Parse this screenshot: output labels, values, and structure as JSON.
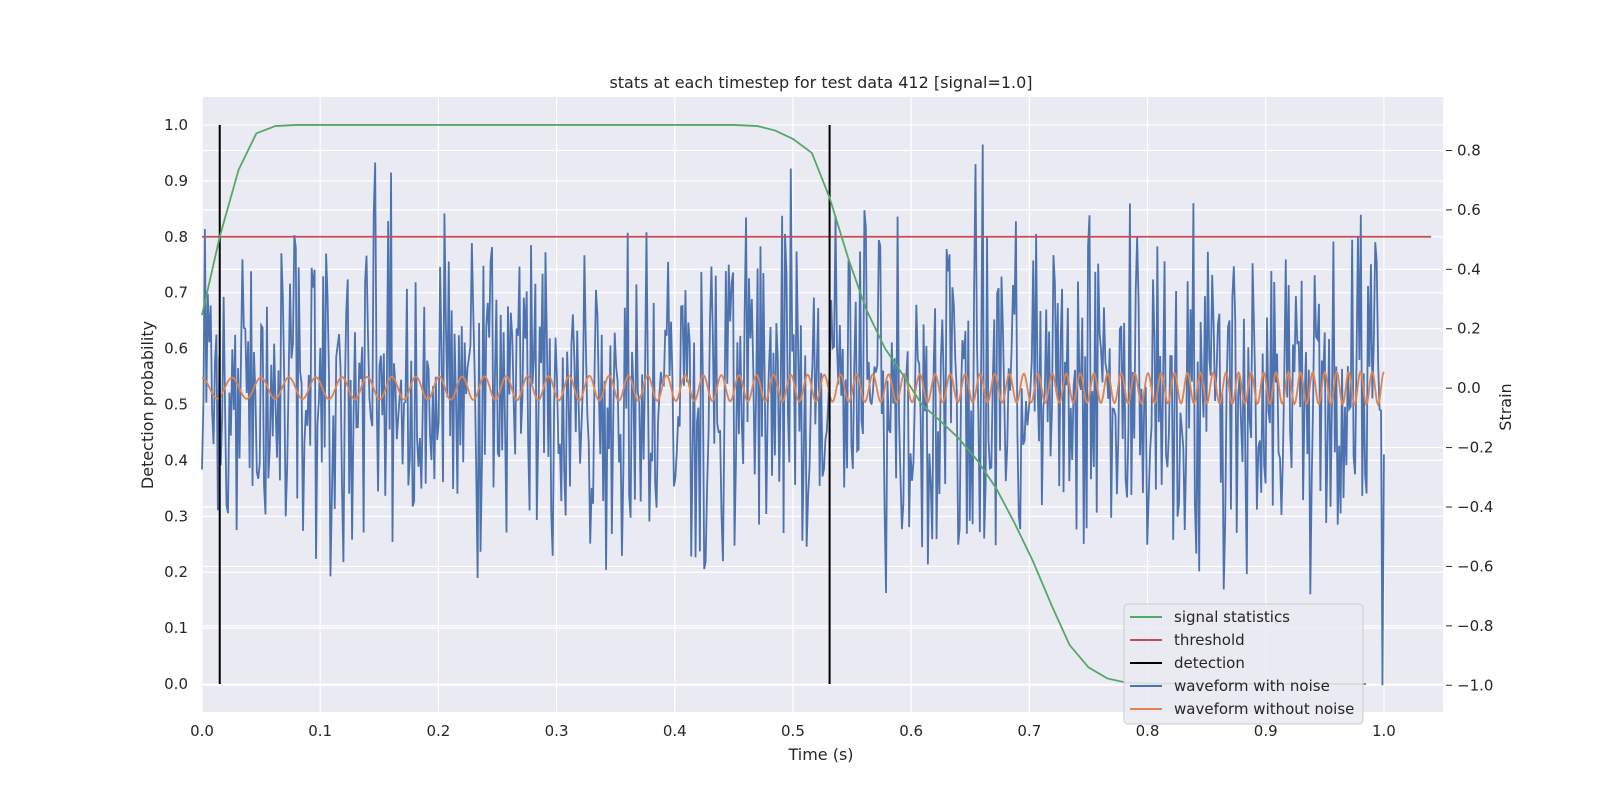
{
  "chart_data": {
    "type": "line",
    "title": "stats at each timestep for test data 412 [signal=1.0]",
    "xlabel": "Time (s)",
    "ylabel": "Detection probability",
    "y2label": "Strain",
    "xlim": [
      0.0,
      1.05
    ],
    "ylim": [
      -0.05,
      1.05
    ],
    "y2lim": [
      -1.09,
      0.98
    ],
    "x_ticks": [
      "0.0",
      "0.1",
      "0.2",
      "0.3",
      "0.4",
      "0.5",
      "0.6",
      "0.7",
      "0.8",
      "0.9",
      "1.0"
    ],
    "y_ticks": [
      "0.0",
      "0.1",
      "0.2",
      "0.3",
      "0.4",
      "0.5",
      "0.6",
      "0.7",
      "0.8",
      "0.9",
      "1.0"
    ],
    "y2_ticks": [
      "−1.0",
      "−0.8",
      "−0.6",
      "−0.4",
      "−0.2",
      "0.0",
      "0.2",
      "0.4",
      "0.6",
      "0.8"
    ],
    "grid": true,
    "legend_position": "lower-right",
    "series": [
      {
        "name": "signal statistics",
        "color": "#55a868",
        "axis": "left",
        "x": [
          0.0,
          0.015,
          0.031,
          0.046,
          0.062,
          0.08,
          0.1,
          0.2,
          0.3,
          0.4,
          0.45,
          0.47,
          0.485,
          0.5,
          0.516,
          0.531,
          0.547,
          0.562,
          0.578,
          0.594,
          0.609,
          0.625,
          0.64,
          0.656,
          0.672,
          0.687,
          0.703,
          0.719,
          0.734,
          0.75,
          0.766,
          0.781,
          0.8,
          0.85,
          0.9,
          0.95,
          0.985
        ],
        "y": [
          0.66,
          0.8,
          0.92,
          0.985,
          0.998,
          1.0,
          1.0,
          1.0,
          1.0,
          1.0,
          1.0,
          0.998,
          0.99,
          0.975,
          0.95,
          0.87,
          0.76,
          0.67,
          0.6,
          0.55,
          0.5,
          0.47,
          0.44,
          0.4,
          0.35,
          0.29,
          0.22,
          0.14,
          0.07,
          0.03,
          0.01,
          0.003,
          0.001,
          0.0,
          0.0,
          0.0,
          0.0
        ]
      },
      {
        "name": "threshold",
        "color": "#c44e52",
        "axis": "left",
        "x": [
          0.0,
          1.04
        ],
        "y": [
          0.8,
          0.8
        ]
      },
      {
        "name": "detection",
        "color": "#000000",
        "axis": "left",
        "x_positions": [
          0.015,
          0.531
        ],
        "y_range": [
          0.0,
          1.0
        ]
      },
      {
        "name": "waveform with noise",
        "color": "#4c72b0",
        "axis": "right",
        "x_range": [
          0.0,
          1.0
        ],
        "n_points": 820,
        "amplitude_range": [
          -0.9,
          0.9
        ],
        "note_values": "random-like noise oscillation around 0 strain, bounded roughly in [-1.0, 0.9]"
      },
      {
        "name": "waveform without noise",
        "color": "#dd8452",
        "axis": "right",
        "x_range": [
          0.0,
          1.0
        ],
        "center": 0.0,
        "amplitude_start": 0.035,
        "amplitude_end": 0.055,
        "cycles": 70
      }
    ]
  }
}
